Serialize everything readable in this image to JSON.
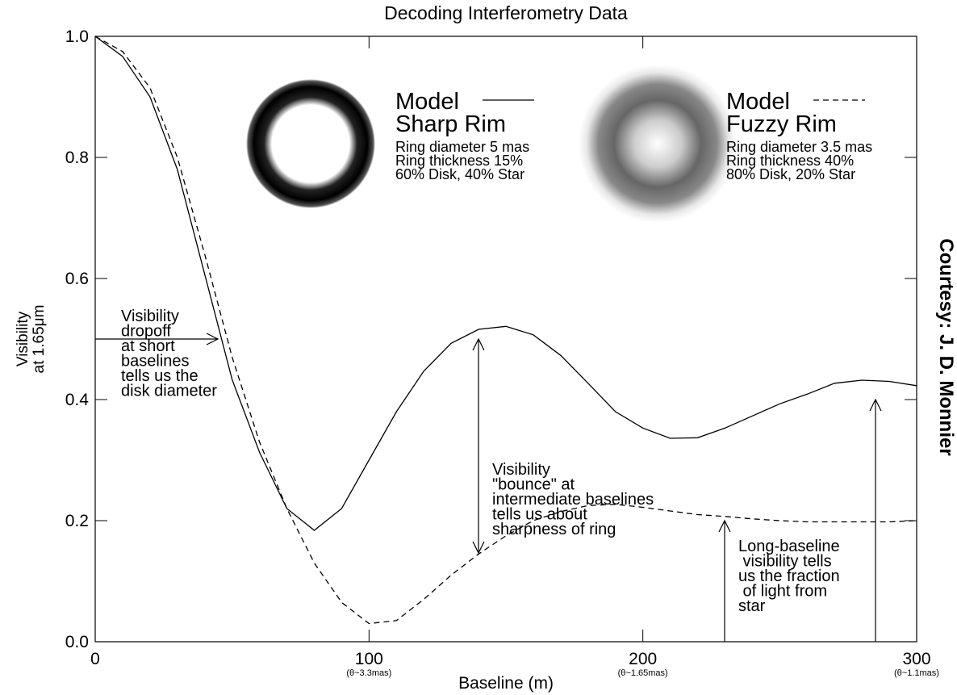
{
  "chart_data": {
    "type": "line",
    "title": "Decoding Interferometry Data",
    "xlabel": "Baseline (m)",
    "ylabel": [
      "Visibility",
      "at 1.65μm"
    ],
    "courtesy": "Courtesy: J. D. Monnier",
    "xlim": [
      0,
      300
    ],
    "xticks": [
      0,
      100,
      200,
      300
    ],
    "xtick_notes": [
      "(θ~3.3mas)",
      "(θ~1.65mas)",
      "(θ~1.1mas)"
    ],
    "ylim": [
      0,
      1.0
    ],
    "yticks": [
      {
        "value": 0,
        "label": "0.0"
      },
      {
        "value": 0.2,
        "label": "0.2"
      },
      {
        "value": 0.4,
        "label": "0.4"
      },
      {
        "value": 0.6,
        "label": "0.6"
      },
      {
        "value": 0.8,
        "label": "0.8"
      },
      {
        "value": 1.0,
        "label": "1.0"
      }
    ],
    "x": [
      0,
      10,
      20,
      30,
      40,
      50,
      60,
      70,
      80,
      90,
      100,
      110,
      120,
      130,
      140,
      150,
      160,
      170,
      180,
      190,
      200,
      210,
      220,
      230,
      240,
      250,
      260,
      270,
      280,
      290,
      300
    ],
    "series": [
      {
        "name": "Sharp Rim",
        "color": "#000000",
        "style": "solid",
        "values": [
          1.0,
          0.967,
          0.9,
          0.78,
          0.607,
          0.433,
          0.313,
          0.22,
          0.184,
          0.22,
          0.3,
          0.38,
          0.447,
          0.493,
          0.516,
          0.521,
          0.507,
          0.473,
          0.427,
          0.38,
          0.353,
          0.336,
          0.337,
          0.353,
          0.373,
          0.393,
          0.409,
          0.427,
          0.432,
          0.43,
          0.423
        ]
      },
      {
        "name": "Fuzzy Rim",
        "color": "#000000",
        "style": "dashed",
        "values": [
          1.0,
          0.975,
          0.915,
          0.8,
          0.64,
          0.47,
          0.33,
          0.22,
          0.13,
          0.065,
          0.03,
          0.035,
          0.07,
          0.11,
          0.145,
          0.175,
          0.2,
          0.215,
          0.225,
          0.227,
          0.222,
          0.216,
          0.21,
          0.207,
          0.203,
          0.2,
          0.198,
          0.198,
          0.198,
          0.198,
          0.2
        ]
      }
    ],
    "models": [
      {
        "heading": "Model",
        "details": [
          "Ring diameter 5 mas",
          "Ring thickness 15%",
          "60% Disk, 40% Star"
        ]
      },
      {
        "heading": "Model",
        "details": [
          "Ring diameter 3.5 mas",
          "Ring thickness 40%",
          "80% Disk, 20% Star"
        ]
      }
    ],
    "annotations": [
      [
        "Visibility",
        "dropoff",
        "at short",
        "baselines",
        "tells us the",
        "disk diameter"
      ],
      [
        "Visibility",
        "\"bounce\" at",
        "intermediate baselines",
        "tells us about",
        "sharpness of ring"
      ],
      [
        "Long-baseline",
        " visibility tells",
        "us the fraction",
        " of light from",
        "star"
      ]
    ]
  }
}
